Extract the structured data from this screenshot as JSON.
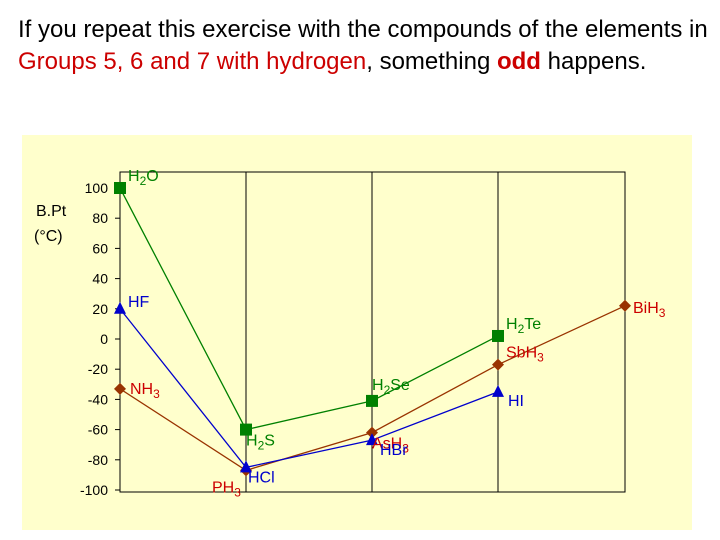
{
  "heading": {
    "part1": "If you repeat this exercise with the compounds of the elements in ",
    "groups": "Groups 5, 6 and 7 with hydrogen",
    "part2": ", something ",
    "odd": "odd",
    "part3": " happens."
  },
  "chart_data": {
    "type": "line",
    "ylabel_line1": "B.Pt",
    "ylabel_line2": "(°C)",
    "ylim": [
      -100,
      100
    ],
    "yticks": [
      100,
      80,
      60,
      40,
      20,
      0,
      -20,
      -40,
      -60,
      -80,
      -100
    ],
    "x": [
      1,
      2,
      3,
      4,
      5
    ],
    "grid": true,
    "colors": {
      "background": "#ffffcc",
      "group6": "#008000",
      "group5": "#993300",
      "group7": "#0000cc",
      "axis": "#000000",
      "grid": "#000000"
    },
    "series": [
      {
        "key": "group6",
        "marker": "square",
        "values": [
          100,
          -60,
          -41,
          2,
          null
        ],
        "labels": [
          "H2O",
          "H2S",
          "H2Se",
          "H2Te",
          ""
        ],
        "label_colors": [
          "#008000",
          "#008000",
          "#008000",
          "#008000",
          ""
        ]
      },
      {
        "key": "group5",
        "marker": "diamond",
        "values": [
          -33,
          -87,
          -62,
          -17,
          22
        ],
        "labels": [
          "NH3",
          "PH3",
          "AsH3",
          "SbH3",
          "BiH3"
        ],
        "label_colors": [
          "#cc0000",
          "#cc0000",
          "#cc0000",
          "#cc0000",
          "#cc0000"
        ]
      },
      {
        "key": "group7",
        "marker": "triangle",
        "values": [
          20,
          -85,
          -67,
          -35,
          null
        ],
        "labels": [
          "HF",
          "HCl",
          "HBr",
          "HI",
          ""
        ],
        "label_colors": [
          "#0000cc",
          "#0000cc",
          "#0000cc",
          "#0000cc",
          ""
        ]
      }
    ]
  }
}
